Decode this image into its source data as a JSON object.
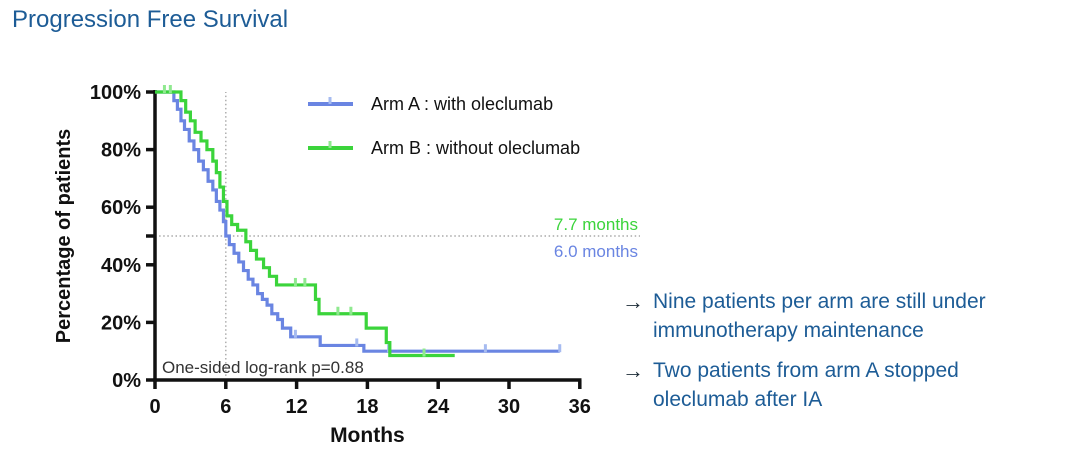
{
  "palette": {
    "heading_blue": "#1d5c96",
    "arm_a_blue": "#6a85e2",
    "arm_a_censor": "#a6bbf0",
    "arm_b_green": "#3bd43b",
    "arm_b_censor": "#8fe98f",
    "axis_black": "#111111",
    "dotted_gray": "#a9a9a9",
    "note_gray": "#333333"
  },
  "title": {
    "text": "Progression Free Survival"
  },
  "chart_data": {
    "type": "line",
    "subtype": "kaplan-meier-step",
    "title": "Progression Free Survival",
    "xlabel": "Months",
    "ylabel": "Percentage of patients",
    "xlim": [
      0,
      36
    ],
    "ylim": [
      0,
      100
    ],
    "x_ticks": [
      0,
      6,
      12,
      18,
      24,
      30,
      36
    ],
    "y_ticks_pct": [
      0,
      20,
      40,
      60,
      80,
      100
    ],
    "extra_unlabeled_y_tick_pct": 50,
    "y_tick_suffix": "%",
    "grid": false,
    "legend_position": "top-center-inside",
    "reference_lines": {
      "horizontal_pct": 50,
      "vertical_month": 6
    },
    "stats_note": "One-sided log-rank p=0.88",
    "series": [
      {
        "name": "Arm A : with oleclumab",
        "color": "#6a85e2",
        "censor_color": "#a6bbf0",
        "median_months": 6.0,
        "median_label": "6.0 months",
        "end_month": 34.3,
        "points": [
          [
            0,
            100
          ],
          [
            1.6,
            97
          ],
          [
            1.9,
            94
          ],
          [
            2.2,
            90
          ],
          [
            2.5,
            87
          ],
          [
            2.9,
            83
          ],
          [
            3.3,
            80
          ],
          [
            3.7,
            76
          ],
          [
            4.1,
            73
          ],
          [
            4.5,
            69
          ],
          [
            4.9,
            66
          ],
          [
            5.2,
            62
          ],
          [
            5.5,
            59
          ],
          [
            5.8,
            55
          ],
          [
            6.0,
            50
          ],
          [
            6.3,
            47
          ],
          [
            6.7,
            44
          ],
          [
            7.1,
            41
          ],
          [
            7.5,
            38
          ],
          [
            7.9,
            35
          ],
          [
            8.3,
            33
          ],
          [
            8.7,
            30
          ],
          [
            9.1,
            28
          ],
          [
            9.5,
            26
          ],
          [
            9.9,
            23
          ],
          [
            10.4,
            21
          ],
          [
            10.8,
            18
          ],
          [
            11.5,
            15
          ],
          [
            14.0,
            12
          ],
          [
            17.7,
            10
          ]
        ],
        "censor_months": [
          11.9,
          17.1,
          19.8,
          28.0,
          34.3
        ]
      },
      {
        "name": "Arm B : without oleclumab",
        "color": "#3bd43b",
        "censor_color": "#8fe98f",
        "median_months": 7.7,
        "median_label": "7.7 months",
        "end_month": 25.4,
        "points": [
          [
            0,
            100
          ],
          [
            2.2,
            97
          ],
          [
            2.6,
            93
          ],
          [
            3.0,
            90
          ],
          [
            3.4,
            86
          ],
          [
            3.9,
            83
          ],
          [
            4.4,
            80
          ],
          [
            4.9,
            76
          ],
          [
            5.2,
            72
          ],
          [
            5.5,
            67
          ],
          [
            5.8,
            62
          ],
          [
            6.1,
            57
          ],
          [
            6.5,
            54
          ],
          [
            7.0,
            52
          ],
          [
            7.7,
            48
          ],
          [
            8.1,
            45
          ],
          [
            8.6,
            42
          ],
          [
            9.2,
            39
          ],
          [
            9.7,
            36
          ],
          [
            10.3,
            33
          ],
          [
            13.6,
            28
          ],
          [
            13.9,
            23
          ],
          [
            17.9,
            18
          ],
          [
            19.6,
            13
          ],
          [
            19.9,
            8.5
          ]
        ],
        "censor_months": [
          0.8,
          1.3,
          11.9,
          12.7,
          15.5,
          16.6,
          22.8
        ]
      }
    ]
  },
  "annotations": {
    "arrow": "→",
    "items": [
      {
        "text": "Nine patients per arm are still under immunotherapy maintenance"
      },
      {
        "text": "Two patients from arm A stopped oleclumab after IA"
      }
    ]
  }
}
